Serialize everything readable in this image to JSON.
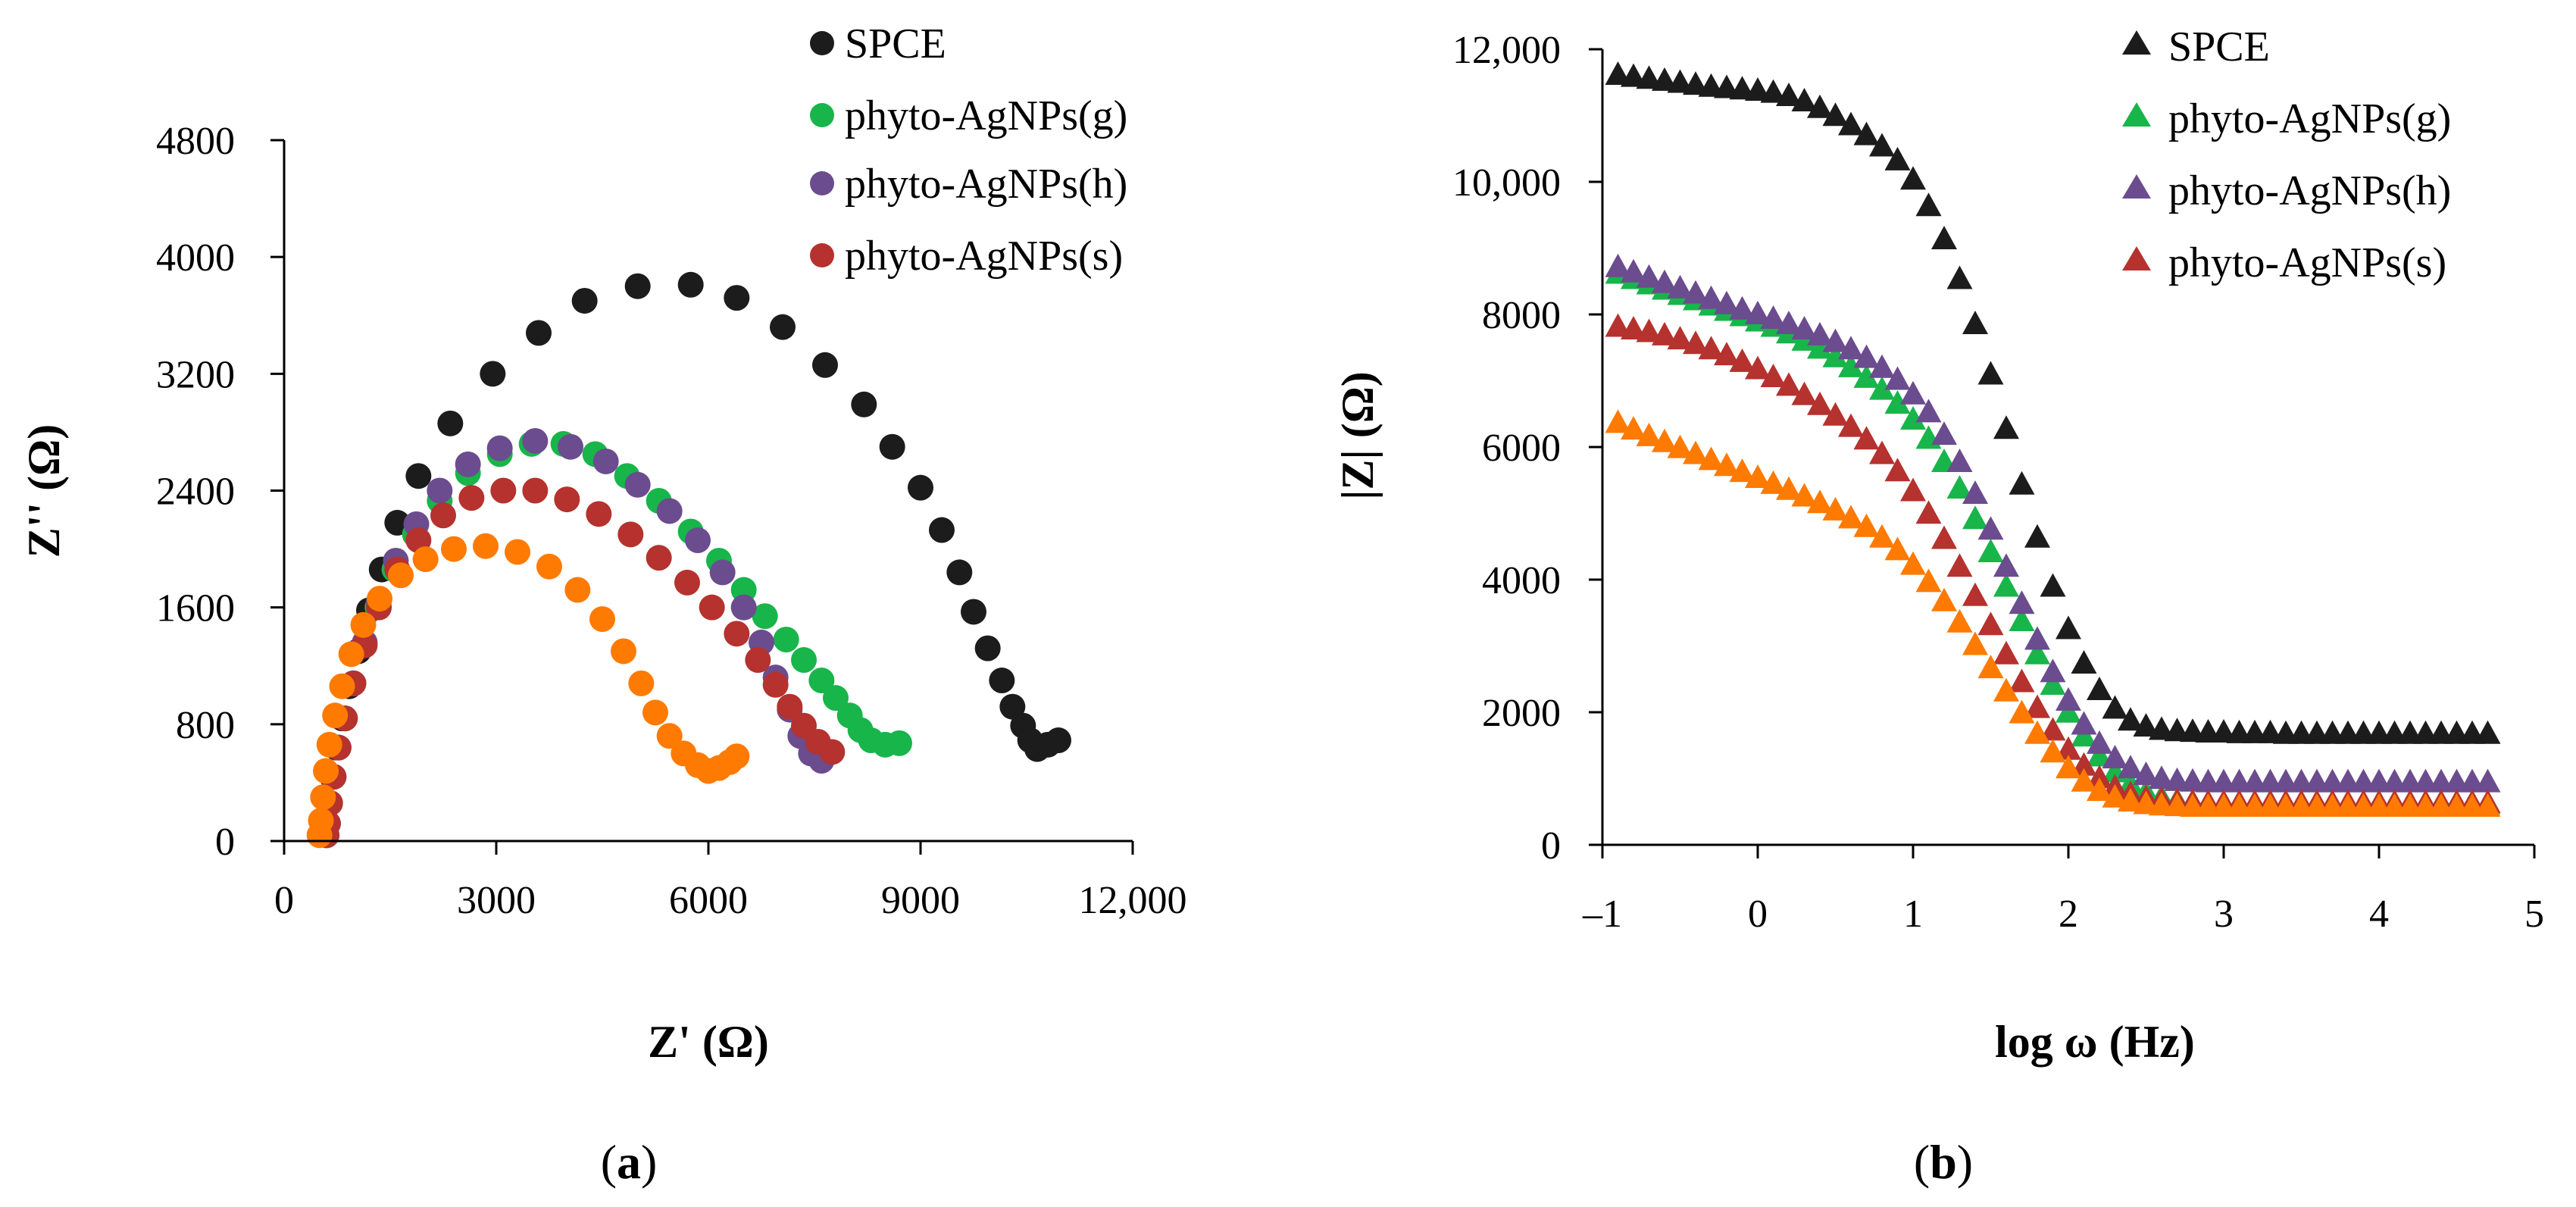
{
  "chart_data": [
    {
      "type": "scatter",
      "panel_label": "a",
      "xlabel": "Z' (Ω)",
      "ylabel": "Z'' (Ω)",
      "xlim": [
        0,
        12000
      ],
      "ylim": [
        0,
        4800
      ],
      "xticks": [
        0,
        3000,
        6000,
        9000,
        12000
      ],
      "yticks": [
        0,
        800,
        1600,
        2400,
        3200,
        4000,
        4800
      ],
      "xtick_labels": [
        "0",
        "3000",
        "6000",
        "9000",
        "12,000"
      ],
      "ytick_labels": [
        "0",
        "800",
        "1600",
        "2400",
        "3200",
        "4000",
        "4800"
      ],
      "grid": false,
      "legend_position": "top-right",
      "marker": "circle",
      "series": [
        {
          "name": "SPCE",
          "color": "#1c1c1c",
          "points": [
            [
              600,
              40
            ],
            [
              620,
              120
            ],
            [
              640,
              260
            ],
            [
              680,
              440
            ],
            [
              740,
              640
            ],
            [
              820,
              840
            ],
            [
              920,
              1060
            ],
            [
              1050,
              1300
            ],
            [
              1200,
              1580
            ],
            [
              1380,
              1860
            ],
            [
              1600,
              2180
            ],
            [
              1900,
              2500
            ],
            [
              2350,
              2860
            ],
            [
              2950,
              3200
            ],
            [
              3600,
              3480
            ],
            [
              4250,
              3700
            ],
            [
              5000,
              3800
            ],
            [
              5750,
              3810
            ],
            [
              6400,
              3720
            ],
            [
              7050,
              3520
            ],
            [
              7650,
              3260
            ],
            [
              8200,
              2990
            ],
            [
              8600,
              2700
            ],
            [
              9000,
              2420
            ],
            [
              9300,
              2130
            ],
            [
              9550,
              1840
            ],
            [
              9750,
              1570
            ],
            [
              9950,
              1320
            ],
            [
              10150,
              1100
            ],
            [
              10300,
              920
            ],
            [
              10450,
              790
            ],
            [
              10550,
              690
            ],
            [
              10650,
              630
            ],
            [
              10800,
              660
            ],
            [
              10950,
              690
            ]
          ]
        },
        {
          "name": "phyto-AgNPs(g)",
          "color": "#18b54a",
          "points": [
            [
              600,
              40
            ],
            [
              620,
              120
            ],
            [
              650,
              260
            ],
            [
              700,
              440
            ],
            [
              770,
              640
            ],
            [
              860,
              840
            ],
            [
              980,
              1080
            ],
            [
              1130,
              1340
            ],
            [
              1320,
              1600
            ],
            [
              1560,
              1860
            ],
            [
              1850,
              2100
            ],
            [
              2200,
              2330
            ],
            [
              2600,
              2520
            ],
            [
              3050,
              2650
            ],
            [
              3500,
              2720
            ],
            [
              3950,
              2720
            ],
            [
              4400,
              2650
            ],
            [
              4850,
              2500
            ],
            [
              5300,
              2330
            ],
            [
              5750,
              2120
            ],
            [
              6150,
              1920
            ],
            [
              6500,
              1720
            ],
            [
              6800,
              1540
            ],
            [
              7100,
              1380
            ],
            [
              7350,
              1240
            ],
            [
              7600,
              1100
            ],
            [
              7800,
              980
            ],
            [
              8000,
              860
            ],
            [
              8150,
              760
            ],
            [
              8300,
              690
            ],
            [
              8500,
              660
            ],
            [
              8700,
              670
            ]
          ]
        },
        {
          "name": "phyto-AgNPs(h)",
          "color": "#6b4c8e",
          "points": [
            [
              600,
              40
            ],
            [
              620,
              120
            ],
            [
              650,
              260
            ],
            [
              700,
              440
            ],
            [
              770,
              640
            ],
            [
              860,
              840
            ],
            [
              980,
              1080
            ],
            [
              1140,
              1360
            ],
            [
              1340,
              1640
            ],
            [
              1580,
              1920
            ],
            [
              1870,
              2170
            ],
            [
              2200,
              2400
            ],
            [
              2600,
              2580
            ],
            [
              3050,
              2690
            ],
            [
              3550,
              2740
            ],
            [
              4050,
              2700
            ],
            [
              4550,
              2600
            ],
            [
              5000,
              2440
            ],
            [
              5450,
              2260
            ],
            [
              5850,
              2060
            ],
            [
              6200,
              1840
            ],
            [
              6500,
              1600
            ],
            [
              6750,
              1360
            ],
            [
              6950,
              1120
            ],
            [
              7150,
              900
            ],
            [
              7300,
              720
            ],
            [
              7450,
              600
            ],
            [
              7600,
              550
            ]
          ]
        },
        {
          "name": "phyto-AgNPs(s)",
          "color": "#b5322e",
          "points": [
            [
              600,
              40
            ],
            [
              620,
              120
            ],
            [
              650,
              260
            ],
            [
              700,
              440
            ],
            [
              770,
              640
            ],
            [
              860,
              840
            ],
            [
              980,
              1080
            ],
            [
              1140,
              1340
            ],
            [
              1340,
              1600
            ],
            [
              1600,
              1860
            ],
            [
              1900,
              2060
            ],
            [
              2250,
              2230
            ],
            [
              2650,
              2350
            ],
            [
              3100,
              2400
            ],
            [
              3550,
              2400
            ],
            [
              4000,
              2340
            ],
            [
              4450,
              2240
            ],
            [
              4900,
              2100
            ],
            [
              5300,
              1940
            ],
            [
              5700,
              1770
            ],
            [
              6050,
              1600
            ],
            [
              6400,
              1420
            ],
            [
              6700,
              1240
            ],
            [
              6950,
              1070
            ],
            [
              7150,
              920
            ],
            [
              7350,
              790
            ],
            [
              7550,
              680
            ],
            [
              7750,
              610
            ]
          ]
        },
        {
          "name": "",
          "color": "#ff7a00",
          "points": [
            [
              500,
              40
            ],
            [
              520,
              140
            ],
            [
              550,
              300
            ],
            [
              590,
              480
            ],
            [
              640,
              660
            ],
            [
              720,
              860
            ],
            [
              820,
              1060
            ],
            [
              950,
              1280
            ],
            [
              1120,
              1480
            ],
            [
              1350,
              1660
            ],
            [
              1650,
              1820
            ],
            [
              2000,
              1930
            ],
            [
              2400,
              2000
            ],
            [
              2850,
              2020
            ],
            [
              3300,
              1980
            ],
            [
              3750,
              1880
            ],
            [
              4150,
              1720
            ],
            [
              4500,
              1520
            ],
            [
              4800,
              1300
            ],
            [
              5050,
              1080
            ],
            [
              5250,
              880
            ],
            [
              5450,
              720
            ],
            [
              5650,
              600
            ],
            [
              5850,
              520
            ],
            [
              6000,
              480
            ],
            [
              6150,
              500
            ],
            [
              6300,
              540
            ],
            [
              6400,
              580
            ]
          ]
        }
      ]
    },
    {
      "type": "scatter",
      "panel_label": "b",
      "xlabel": "log ω (Hz)",
      "ylabel": "|Z| (Ω)",
      "xlim": [
        -1,
        5
      ],
      "ylim": [
        0,
        12000
      ],
      "xticks": [
        -1,
        0,
        1,
        2,
        3,
        4,
        5
      ],
      "yticks": [
        0,
        2000,
        4000,
        6000,
        8000,
        10000,
        12000
      ],
      "xtick_labels": [
        "–1",
        "0",
        "1",
        "2",
        "3",
        "4",
        "5"
      ],
      "ytick_labels": [
        "0",
        "2000",
        "4000",
        "6000",
        "8000",
        "10,000",
        "12,000"
      ],
      "grid": false,
      "legend_position": "top-right",
      "marker": "triangle",
      "x_start": -0.9,
      "x_step": 0.1,
      "series": [
        {
          "name": "SPCE",
          "color": "#1c1c1c",
          "values": [
            11600,
            11570,
            11540,
            11510,
            11480,
            11450,
            11420,
            11400,
            11380,
            11360,
            11330,
            11280,
            11200,
            11100,
            10980,
            10840,
            10690,
            10520,
            10310,
            10020,
            9620,
            9120,
            8520,
            7840,
            7080,
            6260,
            5420,
            4620,
            3880,
            3240,
            2720,
            2320,
            2040,
            1860,
            1770,
            1720,
            1700,
            1690,
            1680,
            1680,
            1670,
            1670,
            1670,
            1660,
            1660,
            1660,
            1660,
            1660,
            1660,
            1660,
            1660,
            1660,
            1660,
            1660,
            1660,
            1660,
            1660
          ]
        },
        {
          "name": "phyto-AgNPs(g)",
          "color": "#18b54a",
          "values": [
            8600,
            8520,
            8440,
            8360,
            8280,
            8200,
            8120,
            8040,
            7960,
            7880,
            7800,
            7700,
            7590,
            7470,
            7340,
            7190,
            7030,
            6850,
            6640,
            6400,
            6110,
            5760,
            5360,
            4900,
            4400,
            3880,
            3360,
            2860,
            2400,
            1980,
            1620,
            1320,
            1080,
            900,
            780,
            700,
            650,
            620,
            610,
            600,
            600,
            600,
            600,
            600,
            600,
            600,
            600,
            600,
            600,
            600,
            600,
            600,
            600,
            600,
            600,
            600,
            600
          ]
        },
        {
          "name": "phyto-AgNPs(h)",
          "color": "#6b4c8e",
          "values": [
            8700,
            8620,
            8540,
            8460,
            8380,
            8300,
            8220,
            8140,
            8060,
            7990,
            7920,
            7840,
            7760,
            7670,
            7570,
            7460,
            7330,
            7180,
            7000,
            6780,
            6510,
            6170,
            5760,
            5280,
            4740,
            4180,
            3620,
            3080,
            2590,
            2160,
            1800,
            1510,
            1290,
            1140,
            1040,
            980,
            950,
            940,
            930,
            930,
            930,
            930,
            930,
            930,
            930,
            930,
            930,
            930,
            930,
            930,
            930,
            930,
            930,
            930,
            930,
            930,
            930
          ]
        },
        {
          "name": "phyto-AgNPs(s)",
          "color": "#b5322e",
          "values": [
            7800,
            7760,
            7720,
            7670,
            7610,
            7540,
            7460,
            7370,
            7270,
            7160,
            7040,
            6910,
            6770,
            6620,
            6460,
            6290,
            6100,
            5880,
            5620,
            5320,
            4980,
            4600,
            4180,
            3740,
            3300,
            2860,
            2440,
            2050,
            1710,
            1420,
            1180,
            990,
            850,
            750,
            690,
            660,
            640,
            630,
            620,
            620,
            620,
            620,
            620,
            620,
            620,
            620,
            620,
            620,
            620,
            620,
            620,
            620,
            620,
            620,
            620,
            620,
            620
          ]
        },
        {
          "name": "",
          "color": "#ff7a00",
          "values": [
            6350,
            6250,
            6150,
            6060,
            5970,
            5880,
            5790,
            5700,
            5610,
            5520,
            5430,
            5340,
            5240,
            5140,
            5030,
            4910,
            4780,
            4620,
            4430,
            4210,
            3950,
            3660,
            3340,
            3000,
            2650,
            2300,
            1970,
            1660,
            1380,
            1140,
            940,
            800,
            700,
            640,
            600,
            580,
            570,
            560,
            560,
            560,
            560,
            560,
            560,
            560,
            560,
            560,
            560,
            560,
            560,
            560,
            560,
            560,
            560,
            560,
            560,
            560,
            560
          ]
        }
      ]
    }
  ]
}
